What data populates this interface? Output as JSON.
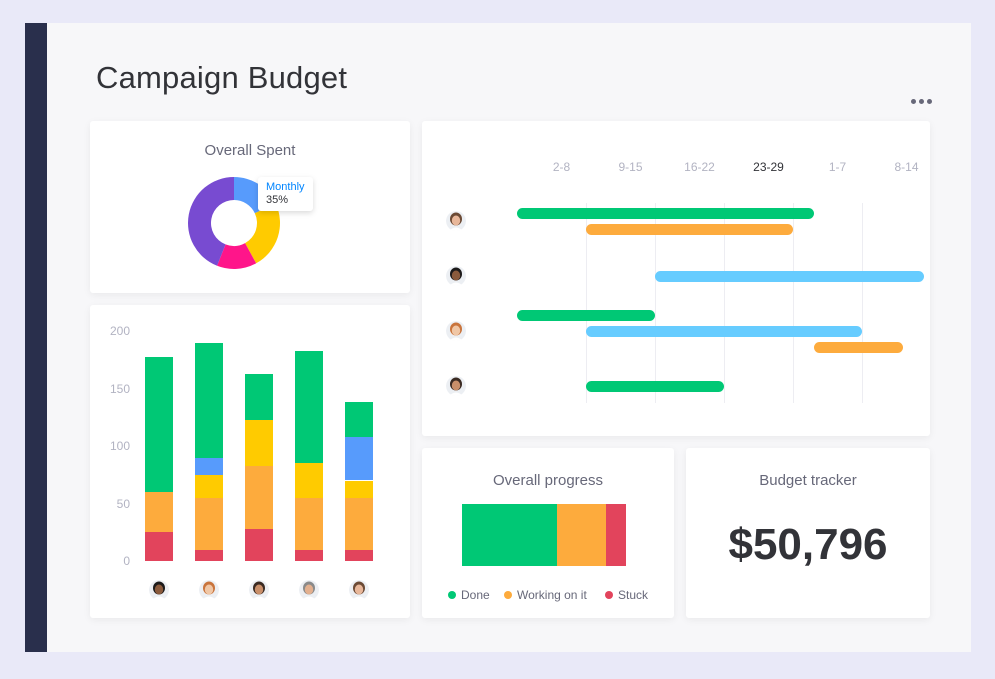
{
  "page": {
    "title": "Campaign Budget"
  },
  "colors": {
    "done": "#00c875",
    "working": "#fdab3d",
    "stuck": "#e2445c",
    "blue": "#579bfc",
    "yellow": "#ffcb00",
    "sky": "#66ccff",
    "purple": "#784bd1",
    "pink": "#ff158a"
  },
  "overall_spent": {
    "title": "Overall Spent",
    "tooltip_label": "Monthly",
    "tooltip_value": "35%",
    "chart_data": {
      "type": "pie",
      "slices": [
        {
          "color": "#579bfc",
          "value": 18
        },
        {
          "color": "#ffcb00",
          "value": 24
        },
        {
          "color": "#ff158a",
          "value": 14
        },
        {
          "color": "#784bd1",
          "value": 44
        }
      ]
    }
  },
  "timeline": {
    "weeks": [
      "2-8",
      "9-15",
      "16-22",
      "23-29",
      "1-7",
      "8-14"
    ],
    "active_week": "23-29",
    "rows": [
      {
        "avatar": "avatar-1",
        "bars": [
          {
            "start": 0,
            "end": 4.3,
            "color": "#00c875"
          },
          {
            "start": 1,
            "end": 4,
            "color": "#fdab3d"
          }
        ]
      },
      {
        "avatar": "avatar-2",
        "bars": [
          {
            "start": 2,
            "end": 5.9,
            "color": "#66ccff"
          }
        ]
      },
      {
        "avatar": "avatar-3",
        "bars": [
          {
            "start": 0,
            "end": 2,
            "color": "#00c875"
          },
          {
            "start": 1,
            "end": 5,
            "color": "#66ccff"
          },
          {
            "start": 4.3,
            "end": 5.6,
            "color": "#fdab3d"
          }
        ]
      },
      {
        "avatar": "avatar-4",
        "bars": [
          {
            "start": 1,
            "end": 3,
            "color": "#00c875"
          }
        ]
      }
    ]
  },
  "chart_data": {
    "type": "bar",
    "stacked": true,
    "ylim": [
      0,
      200
    ],
    "yticks": [
      "0",
      "50",
      "100",
      "150",
      "200"
    ],
    "categories": [
      "avatar-a",
      "avatar-b",
      "avatar-c",
      "avatar-d",
      "avatar-e"
    ],
    "series": [
      {
        "color": "#e2445c",
        "values": [
          25,
          10,
          28,
          10,
          10
        ]
      },
      {
        "color": "#fdab3d",
        "values": [
          35,
          45,
          55,
          45,
          45
        ]
      },
      {
        "color": "#ffcb00",
        "values": [
          0,
          20,
          40,
          30,
          15
        ]
      },
      {
        "color": "#579bfc",
        "values": [
          0,
          15,
          0,
          0,
          38
        ]
      },
      {
        "color": "#00c875",
        "values": [
          117,
          100,
          40,
          98,
          30
        ]
      }
    ]
  },
  "progress": {
    "title": "Overall progress",
    "segments": [
      {
        "label": "Done",
        "fraction": 0.58,
        "color": "#00c875"
      },
      {
        "label": "Working on it",
        "fraction": 0.3,
        "color": "#fdab3d"
      },
      {
        "label": "Stuck",
        "fraction": 0.12,
        "color": "#e2445c"
      }
    ],
    "legend": {
      "done": "Done",
      "working": "Working on it",
      "stuck": "Stuck"
    }
  },
  "budget": {
    "title": "Budget tracker",
    "amount": "$50,796"
  }
}
